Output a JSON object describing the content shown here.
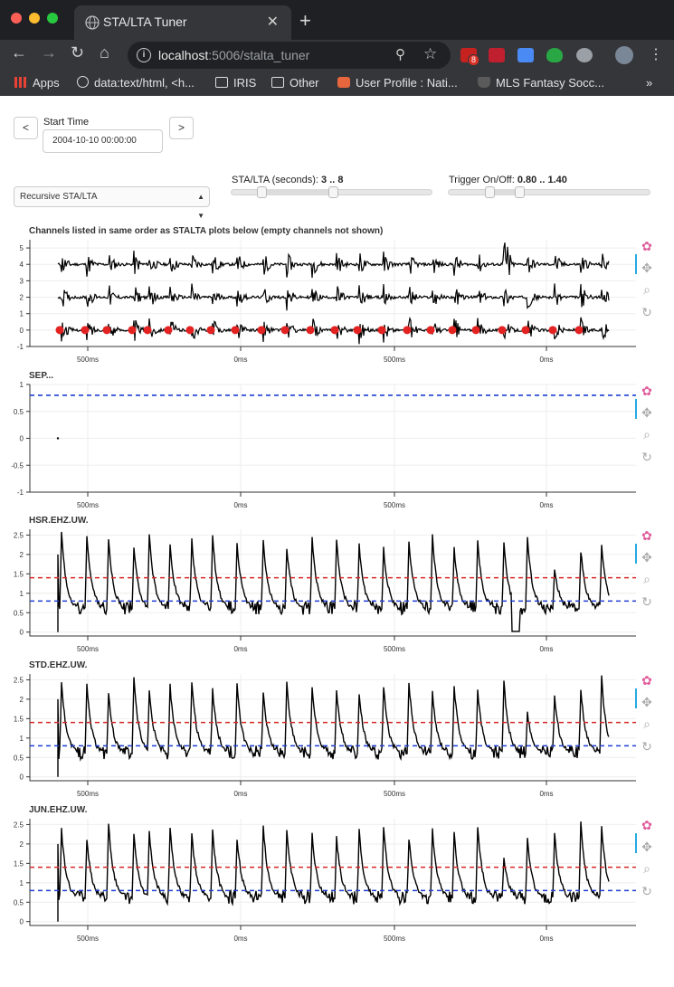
{
  "browser": {
    "tab_title": "STA/LTA Tuner",
    "url_host": "localhost",
    "url_path": ":5006/stalta_tuner",
    "gmail_badge": "8",
    "bookmarks": [
      "Apps",
      "data:text/html, <h...",
      "IRIS",
      "Other",
      "User Profile : Nati...",
      "MLS Fantasy Socc...",
      "»"
    ]
  },
  "controls": {
    "prev_label": "<",
    "next_label": ">",
    "start_time_label": "Start Time",
    "start_time_value": "2004-10-10 00:00:00",
    "method_value": "Recursive STA/LTA",
    "stalta_label": "STA/LTA (seconds):",
    "stalta_value": "3 .. 8",
    "stalta_range": [
      3,
      8
    ],
    "trigger_label": "Trigger On/Off:",
    "trigger_value": "0.80 .. 1.40",
    "trigger_range": [
      0.8,
      1.4
    ]
  },
  "colors": {
    "trigger_on": "#d62728",
    "trigger_off": "#1f3fd4",
    "trace": "#000000",
    "marker": "#e32222"
  },
  "plots": [
    {
      "title": "Channels listed in same order as STALTA plots below (empty channels not shown)",
      "yticks": [
        "5",
        "4",
        "3",
        "2",
        "1",
        "0",
        "-1"
      ],
      "xticks": [
        "500ms",
        "0ms",
        "500ms",
        "0ms"
      ]
    },
    {
      "title": "SEP...",
      "yticks": [
        "1",
        "0.5",
        "0",
        "-0.5",
        "-1"
      ],
      "xticks": [
        "500ms",
        "0ms",
        "500ms",
        "0ms"
      ]
    },
    {
      "title": "HSR.EHZ.UW.",
      "yticks": [
        "2.5",
        "2",
        "1.5",
        "1",
        "0.5",
        "0"
      ],
      "xticks": [
        "500ms",
        "0ms",
        "500ms",
        "0ms"
      ]
    },
    {
      "title": "STD.EHZ.UW.",
      "yticks": [
        "2.5",
        "2",
        "1.5",
        "1",
        "0.5",
        "0"
      ],
      "xticks": [
        "500ms",
        "0ms",
        "500ms",
        "0ms"
      ]
    },
    {
      "title": "JUN.EHZ.UW.",
      "yticks": [
        "2.5",
        "2",
        "1.5",
        "1",
        "0.5",
        "0"
      ],
      "xticks": [
        "500ms",
        "0ms",
        "500ms",
        "0ms"
      ]
    }
  ]
}
